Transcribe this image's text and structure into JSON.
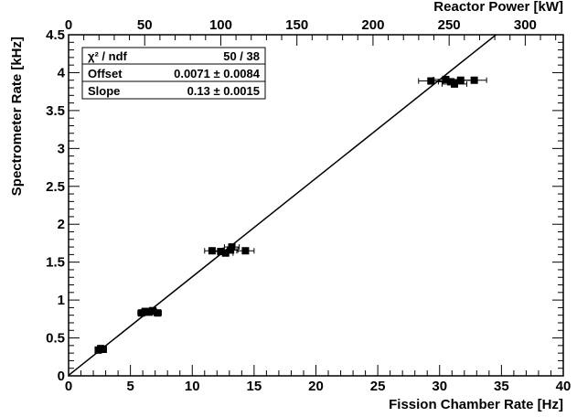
{
  "chart_data": {
    "type": "scatter",
    "xlabel": "Fission Chamber Rate [Hz]",
    "ylabel": "Spectrometer Rate [kHz]",
    "x2label": "Reactor Power [kW]",
    "xlim": [
      0,
      40
    ],
    "ylim": [
      0,
      4.5
    ],
    "x2lim": [
      0,
      325
    ],
    "xticks": [
      0,
      5,
      10,
      15,
      20,
      25,
      30,
      35,
      40
    ],
    "xtick_labels": [
      "0",
      "5",
      "10",
      "15",
      "20",
      "25",
      "30",
      "35",
      "40"
    ],
    "yticks": [
      0,
      0.5,
      1,
      1.5,
      2,
      2.5,
      3,
      3.5,
      4,
      4.5
    ],
    "ytick_labels": [
      "0",
      "0.5",
      "1",
      "1.5",
      "2",
      "2.5",
      "3",
      "3.5",
      "4",
      "4.5"
    ],
    "x2ticks": [
      0,
      50,
      100,
      150,
      200,
      250,
      300
    ],
    "x2tick_labels": [
      "0",
      "50",
      "100",
      "150",
      "200",
      "250",
      "300"
    ],
    "grid": false,
    "fit": {
      "offset": 0.0071,
      "slope": 0.13
    },
    "stats": {
      "row1_label": "χ² / ndf",
      "row1_value": "50 / 38",
      "row2_label": "Offset",
      "row2_value": "0.0071 ± 0.0084",
      "row3_label": "Slope",
      "row3_value": "0.13 ± 0.0015"
    },
    "points": [
      {
        "x": 2.4,
        "y": 0.34,
        "xerr": 0.25
      },
      {
        "x": 2.6,
        "y": 0.36,
        "xerr": 0.25
      },
      {
        "x": 2.8,
        "y": 0.35,
        "xerr": 0.25
      },
      {
        "x": 5.9,
        "y": 0.83,
        "xerr": 0.3
      },
      {
        "x": 6.2,
        "y": 0.85,
        "xerr": 0.3
      },
      {
        "x": 6.5,
        "y": 0.84,
        "xerr": 0.3
      },
      {
        "x": 6.8,
        "y": 0.86,
        "xerr": 0.3
      },
      {
        "x": 7.2,
        "y": 0.83,
        "xerr": 0.3
      },
      {
        "x": 11.6,
        "y": 1.65,
        "xerr": 0.6
      },
      {
        "x": 12.3,
        "y": 1.64,
        "xerr": 0.6
      },
      {
        "x": 12.7,
        "y": 1.62,
        "xerr": 0.6
      },
      {
        "x": 13.1,
        "y": 1.66,
        "xerr": 0.6
      },
      {
        "x": 13.2,
        "y": 1.7,
        "xerr": 0.6
      },
      {
        "x": 14.3,
        "y": 1.65,
        "xerr": 0.7
      },
      {
        "x": 29.3,
        "y": 3.89,
        "xerr": 1.0
      },
      {
        "x": 30.5,
        "y": 3.91,
        "xerr": 1.0
      },
      {
        "x": 30.9,
        "y": 3.88,
        "xerr": 1.0
      },
      {
        "x": 31.2,
        "y": 3.85,
        "xerr": 1.0
      },
      {
        "x": 31.7,
        "y": 3.9,
        "xerr": 1.0
      },
      {
        "x": 32.8,
        "y": 3.9,
        "xerr": 1.0
      }
    ]
  }
}
